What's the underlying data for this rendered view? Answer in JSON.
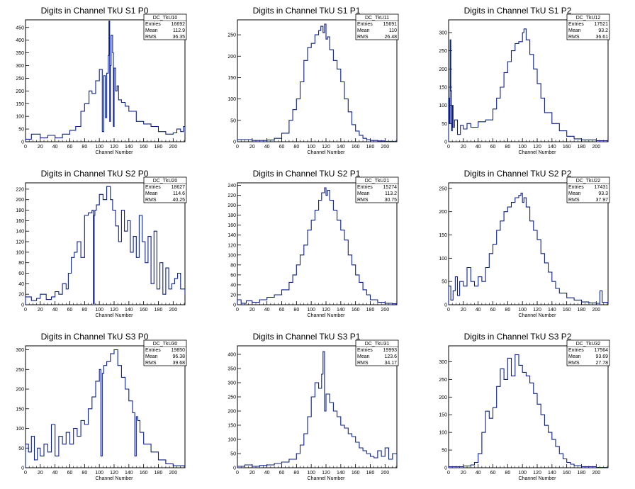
{
  "chart_data": [
    {
      "type": "histogram",
      "title": "Digits in Channel TkU S1 P0",
      "xlabel": "Channel Number",
      "ylabel": "",
      "xlim": [
        0,
        216
      ],
      "ylim": [
        0,
        480
      ],
      "xticks": [
        0,
        20,
        40,
        60,
        80,
        100,
        120,
        140,
        160,
        180,
        200
      ],
      "yticks": [
        0,
        50,
        100,
        150,
        200,
        250,
        300,
        350,
        400,
        450
      ],
      "stats": {
        "name": "DC_TkU10",
        "rows": [
          [
            "Entries",
            "16692"
          ],
          [
            "Mean",
            "112.9"
          ],
          [
            "RMS",
            "36.35"
          ]
        ]
      },
      "bins_x": [
        0,
        8,
        20,
        30,
        40,
        50,
        60,
        68,
        75,
        80,
        86,
        90,
        95,
        100,
        104,
        106,
        108,
        110,
        112,
        113,
        114,
        115,
        116,
        118,
        119,
        120,
        122,
        124,
        126,
        130,
        135,
        140,
        150,
        160,
        170,
        180,
        190,
        200,
        205,
        210,
        214,
        216
      ],
      "bins_y": [
        10,
        30,
        15,
        25,
        15,
        30,
        45,
        60,
        120,
        150,
        200,
        190,
        240,
        285,
        40,
        260,
        95,
        270,
        340,
        475,
        80,
        300,
        420,
        350,
        60,
        290,
        200,
        220,
        165,
        155,
        140,
        120,
        80,
        70,
        60,
        40,
        30,
        35,
        50,
        40,
        60,
        30
      ]
    },
    {
      "type": "histogram",
      "title": "Digits in Channel TkU S1 P1",
      "xlabel": "Channel Number",
      "ylabel": "",
      "xlim": [
        0,
        216
      ],
      "ylim": [
        0,
        285
      ],
      "xticks": [
        0,
        20,
        40,
        60,
        80,
        100,
        120,
        140,
        160,
        180,
        200
      ],
      "yticks": [
        0,
        50,
        100,
        150,
        200,
        250
      ],
      "stats": {
        "name": "DC_TkU11",
        "rows": [
          [
            "Entries",
            "15691"
          ],
          [
            "Mean",
            "110"
          ],
          [
            "RMS",
            "26.48"
          ]
        ]
      },
      "bins_x": [
        0,
        20,
        40,
        50,
        60,
        70,
        75,
        80,
        85,
        90,
        95,
        100,
        105,
        110,
        113,
        116,
        118,
        120,
        122,
        125,
        130,
        135,
        140,
        145,
        150,
        155,
        160,
        165,
        170,
        175,
        180,
        190,
        200,
        216
      ],
      "bins_y": [
        5,
        3,
        4,
        8,
        20,
        50,
        75,
        100,
        140,
        190,
        220,
        230,
        250,
        260,
        270,
        255,
        275,
        240,
        245,
        215,
        190,
        170,
        140,
        100,
        70,
        40,
        25,
        15,
        8,
        5,
        3,
        2,
        1,
        0
      ]
    },
    {
      "type": "histogram",
      "title": "Digits in Channel TkU S1 P2",
      "xlabel": "Channel Number",
      "ylabel": "",
      "xlim": [
        0,
        216
      ],
      "ylim": [
        0,
        335
      ],
      "xticks": [
        0,
        20,
        40,
        60,
        80,
        100,
        120,
        140,
        160,
        180,
        200
      ],
      "yticks": [
        0,
        50,
        100,
        150,
        200,
        250,
        300
      ],
      "stats": {
        "name": "DC_TkU12",
        "rows": [
          [
            "Entries",
            "17521"
          ],
          [
            "Mean",
            "93.2"
          ],
          [
            "RMS",
            "36.61"
          ]
        ]
      },
      "bins_x": [
        0,
        1,
        2,
        3,
        4,
        5,
        6,
        8,
        12,
        16,
        20,
        25,
        30,
        40,
        50,
        60,
        65,
        70,
        75,
        80,
        85,
        90,
        95,
        100,
        102,
        105,
        110,
        115,
        120,
        125,
        130,
        140,
        150,
        160,
        170,
        180,
        200,
        216
      ],
      "bins_y": [
        120,
        50,
        280,
        140,
        30,
        100,
        40,
        60,
        20,
        45,
        35,
        50,
        40,
        55,
        60,
        90,
        120,
        150,
        190,
        220,
        250,
        270,
        275,
        300,
        310,
        280,
        240,
        200,
        160,
        120,
        80,
        50,
        30,
        15,
        8,
        5,
        3,
        1
      ]
    },
    {
      "type": "histogram",
      "title": "Digits in Channel TkU S2 P0",
      "xlabel": "Channel Number",
      "ylabel": "",
      "xlim": [
        0,
        216
      ],
      "ylim": [
        0,
        232
      ],
      "xticks": [
        0,
        20,
        40,
        60,
        80,
        100,
        120,
        140,
        160,
        180,
        200
      ],
      "yticks": [
        0,
        20,
        40,
        60,
        80,
        100,
        120,
        140,
        160,
        180,
        200,
        220
      ],
      "stats": {
        "name": "DC_TkU20",
        "rows": [
          [
            "Entries",
            "18627"
          ],
          [
            "Mean",
            "114.6"
          ],
          [
            "RMS",
            "40.25"
          ]
        ]
      },
      "bins_x": [
        0,
        8,
        15,
        20,
        28,
        35,
        40,
        45,
        50,
        55,
        58,
        62,
        66,
        70,
        75,
        80,
        85,
        90,
        92,
        93,
        94,
        96,
        100,
        105,
        110,
        115,
        118,
        122,
        126,
        130,
        134,
        138,
        142,
        146,
        150,
        154,
        158,
        162,
        166,
        170,
        174,
        178,
        182,
        186,
        190,
        194,
        198,
        202,
        206,
        210,
        216
      ],
      "bins_y": [
        15,
        8,
        12,
        20,
        10,
        15,
        25,
        20,
        40,
        30,
        60,
        90,
        100,
        120,
        90,
        170,
        175,
        180,
        2,
        170,
        180,
        190,
        210,
        200,
        225,
        200,
        180,
        150,
        120,
        180,
        140,
        160,
        100,
        130,
        90,
        170,
        120,
        80,
        130,
        40,
        140,
        30,
        80,
        20,
        70,
        30,
        40,
        50,
        60,
        30,
        20
      ]
    },
    {
      "type": "histogram",
      "title": "Digits in Channel TkU S2 P1",
      "xlabel": "Channel Number",
      "ylabel": "",
      "xlim": [
        0,
        216
      ],
      "ylim": [
        0,
        245
      ],
      "xticks": [
        0,
        20,
        40,
        60,
        80,
        100,
        120,
        140,
        160,
        180,
        200
      ],
      "yticks": [
        0,
        20,
        40,
        60,
        80,
        100,
        120,
        140,
        160,
        180,
        200,
        220,
        240
      ],
      "stats": {
        "name": "DC_TkU21",
        "rows": [
          [
            "Entries",
            "15274"
          ],
          [
            "Mean",
            "113.2"
          ],
          [
            "RMS",
            "30.75"
          ]
        ]
      },
      "bins_x": [
        0,
        5,
        12,
        20,
        30,
        40,
        50,
        60,
        70,
        75,
        80,
        85,
        90,
        95,
        100,
        105,
        110,
        114,
        118,
        120,
        122,
        125,
        130,
        135,
        140,
        145,
        150,
        155,
        160,
        165,
        170,
        175,
        180,
        190,
        200,
        210,
        216
      ],
      "bins_y": [
        10,
        3,
        8,
        5,
        10,
        15,
        20,
        30,
        45,
        60,
        80,
        100,
        120,
        150,
        170,
        190,
        210,
        225,
        235,
        220,
        230,
        210,
        190,
        170,
        150,
        130,
        100,
        80,
        60,
        45,
        30,
        20,
        10,
        5,
        3,
        2,
        1
      ]
    },
    {
      "type": "histogram",
      "title": "Digits in Channel TkU S2 P2",
      "xlabel": "Channel Number",
      "ylabel": "",
      "xlim": [
        0,
        216
      ],
      "ylim": [
        0,
        262
      ],
      "xticks": [
        0,
        20,
        40,
        60,
        80,
        100,
        120,
        140,
        160,
        180,
        200
      ],
      "yticks": [
        0,
        50,
        100,
        150,
        200,
        250
      ],
      "stats": {
        "name": "DC_TkU22",
        "rows": [
          [
            "Entries",
            "17431"
          ],
          [
            "Mean",
            "93.3"
          ],
          [
            "RMS",
            "37.97"
          ]
        ]
      },
      "bins_x": [
        0,
        3,
        6,
        9,
        12,
        15,
        20,
        25,
        30,
        35,
        40,
        45,
        50,
        55,
        60,
        65,
        70,
        75,
        80,
        85,
        90,
        95,
        98,
        100,
        102,
        105,
        110,
        115,
        120,
        125,
        130,
        135,
        140,
        145,
        150,
        160,
        170,
        180,
        190,
        200,
        205,
        208,
        216
      ],
      "bins_y": [
        40,
        10,
        30,
        60,
        20,
        50,
        40,
        80,
        50,
        40,
        60,
        50,
        80,
        110,
        130,
        160,
        180,
        200,
        210,
        220,
        230,
        235,
        240,
        220,
        230,
        210,
        180,
        160,
        140,
        110,
        90,
        70,
        50,
        35,
        25,
        15,
        10,
        6,
        4,
        3,
        30,
        5,
        0
      ]
    },
    {
      "type": "histogram",
      "title": "Digits in Channel TkU S3 P0",
      "xlabel": "Channel Number",
      "ylabel": "",
      "xlim": [
        0,
        216
      ],
      "ylim": [
        0,
        310
      ],
      "xticks": [
        0,
        20,
        40,
        60,
        80,
        100,
        120,
        140,
        160,
        180,
        200
      ],
      "yticks": [
        0,
        50,
        100,
        150,
        200,
        250,
        300
      ],
      "stats": {
        "name": "DC_TkU30",
        "rows": [
          [
            "Entries",
            "19850"
          ],
          [
            "Mean",
            "96.38"
          ],
          [
            "RMS",
            "39.68"
          ]
        ]
      },
      "bins_x": [
        0,
        4,
        8,
        12,
        16,
        20,
        25,
        30,
        35,
        40,
        45,
        50,
        55,
        60,
        65,
        70,
        75,
        80,
        85,
        90,
        95,
        100,
        102,
        104,
        106,
        110,
        115,
        120,
        125,
        130,
        135,
        140,
        145,
        148,
        150,
        152,
        155,
        160,
        170,
        180,
        190,
        200,
        216
      ],
      "bins_y": [
        60,
        40,
        80,
        20,
        50,
        30,
        60,
        40,
        110,
        30,
        80,
        60,
        90,
        60,
        100,
        80,
        120,
        110,
        150,
        180,
        220,
        250,
        30,
        240,
        260,
        270,
        290,
        300,
        260,
        230,
        200,
        170,
        140,
        30,
        130,
        120,
        90,
        60,
        40,
        20,
        10,
        5,
        2
      ]
    },
    {
      "type": "histogram",
      "title": "Digits in Channel TkU S3 P1",
      "xlabel": "Channel Number",
      "ylabel": "",
      "xlim": [
        0,
        216
      ],
      "ylim": [
        0,
        430
      ],
      "xticks": [
        0,
        20,
        40,
        60,
        80,
        100,
        120,
        140,
        160,
        180,
        200
      ],
      "yticks": [
        0,
        50,
        100,
        150,
        200,
        250,
        300,
        350,
        400
      ],
      "stats": {
        "name": "DC_TkU31",
        "rows": [
          [
            "Entries",
            "19993"
          ],
          [
            "Mean",
            "123.6"
          ],
          [
            "RMS",
            "34.17"
          ]
        ]
      },
      "bins_x": [
        0,
        10,
        20,
        30,
        40,
        50,
        60,
        70,
        80,
        85,
        90,
        95,
        100,
        105,
        110,
        114,
        116,
        118,
        120,
        125,
        130,
        135,
        140,
        145,
        150,
        155,
        160,
        165,
        170,
        175,
        180,
        185,
        190,
        195,
        200,
        205,
        210,
        216
      ],
      "bins_y": [
        5,
        10,
        5,
        8,
        10,
        15,
        20,
        30,
        50,
        80,
        120,
        180,
        250,
        300,
        280,
        330,
        410,
        200,
        260,
        230,
        200,
        180,
        150,
        140,
        120,
        110,
        90,
        70,
        60,
        50,
        40,
        35,
        60,
        40,
        70,
        30,
        50,
        20
      ]
    },
    {
      "type": "histogram",
      "title": "Digits in Channel TkU S3 P2",
      "xlabel": "Channel Number",
      "ylabel": "",
      "xlim": [
        0,
        216
      ],
      "ylim": [
        0,
        345
      ],
      "xticks": [
        0,
        20,
        40,
        60,
        80,
        100,
        120,
        140,
        160,
        180,
        200
      ],
      "yticks": [
        0,
        50,
        100,
        150,
        200,
        250,
        300
      ],
      "stats": {
        "name": "DC_TkU32",
        "rows": [
          [
            "Entries",
            "17564"
          ],
          [
            "Mean",
            "93.69"
          ],
          [
            "RMS",
            "27.78"
          ]
        ]
      },
      "bins_x": [
        0,
        20,
        30,
        35,
        40,
        45,
        50,
        55,
        60,
        65,
        70,
        75,
        80,
        85,
        90,
        95,
        100,
        105,
        110,
        115,
        120,
        125,
        130,
        135,
        140,
        145,
        150,
        155,
        160,
        165,
        170,
        180,
        200,
        216
      ],
      "bins_y": [
        3,
        5,
        8,
        15,
        40,
        100,
        160,
        140,
        170,
        230,
        280,
        250,
        310,
        260,
        320,
        290,
        270,
        260,
        240,
        210,
        180,
        150,
        120,
        100,
        80,
        60,
        40,
        25,
        15,
        10,
        6,
        3,
        1,
        0
      ]
    }
  ]
}
